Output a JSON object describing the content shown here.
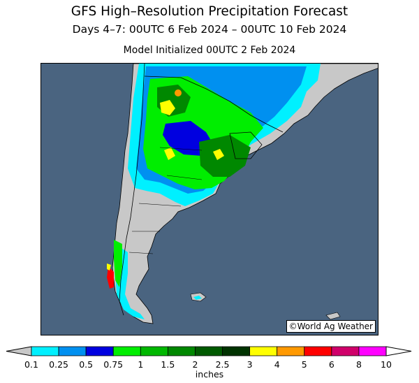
{
  "header": {
    "title": "GFS High–Resolution Precipitation Forecast",
    "subtitle": "Days 4–7: 00UTC 6 Feb 2024 – 00UTC 10 Feb 2024",
    "init": "Model Initialized 00UTC 2 Feb 2024"
  },
  "map": {
    "credit": "©World Ag Weather",
    "region": "southern-south-america",
    "colors": {
      "ocean": "#4a6480",
      "land": "#c8c8c8",
      "border": "#000000"
    }
  },
  "legend": {
    "units": "inches",
    "ticks": [
      "0.1",
      "0.25",
      "0.5",
      "0.75",
      "1",
      "1.5",
      "2",
      "2.5",
      "3",
      "4",
      "5",
      "6",
      "8",
      "10"
    ],
    "colors": [
      "#00f0ff",
      "#0090f0",
      "#0000e0",
      "#00ee00",
      "#00b800",
      "#008800",
      "#005a00",
      "#003300",
      "#ffff00",
      "#ff9900",
      "#ff0000",
      "#d0006a",
      "#ff00ff",
      "#a050c8"
    ],
    "under_color": "#c8c8c8",
    "over_color": "#ffffff"
  }
}
